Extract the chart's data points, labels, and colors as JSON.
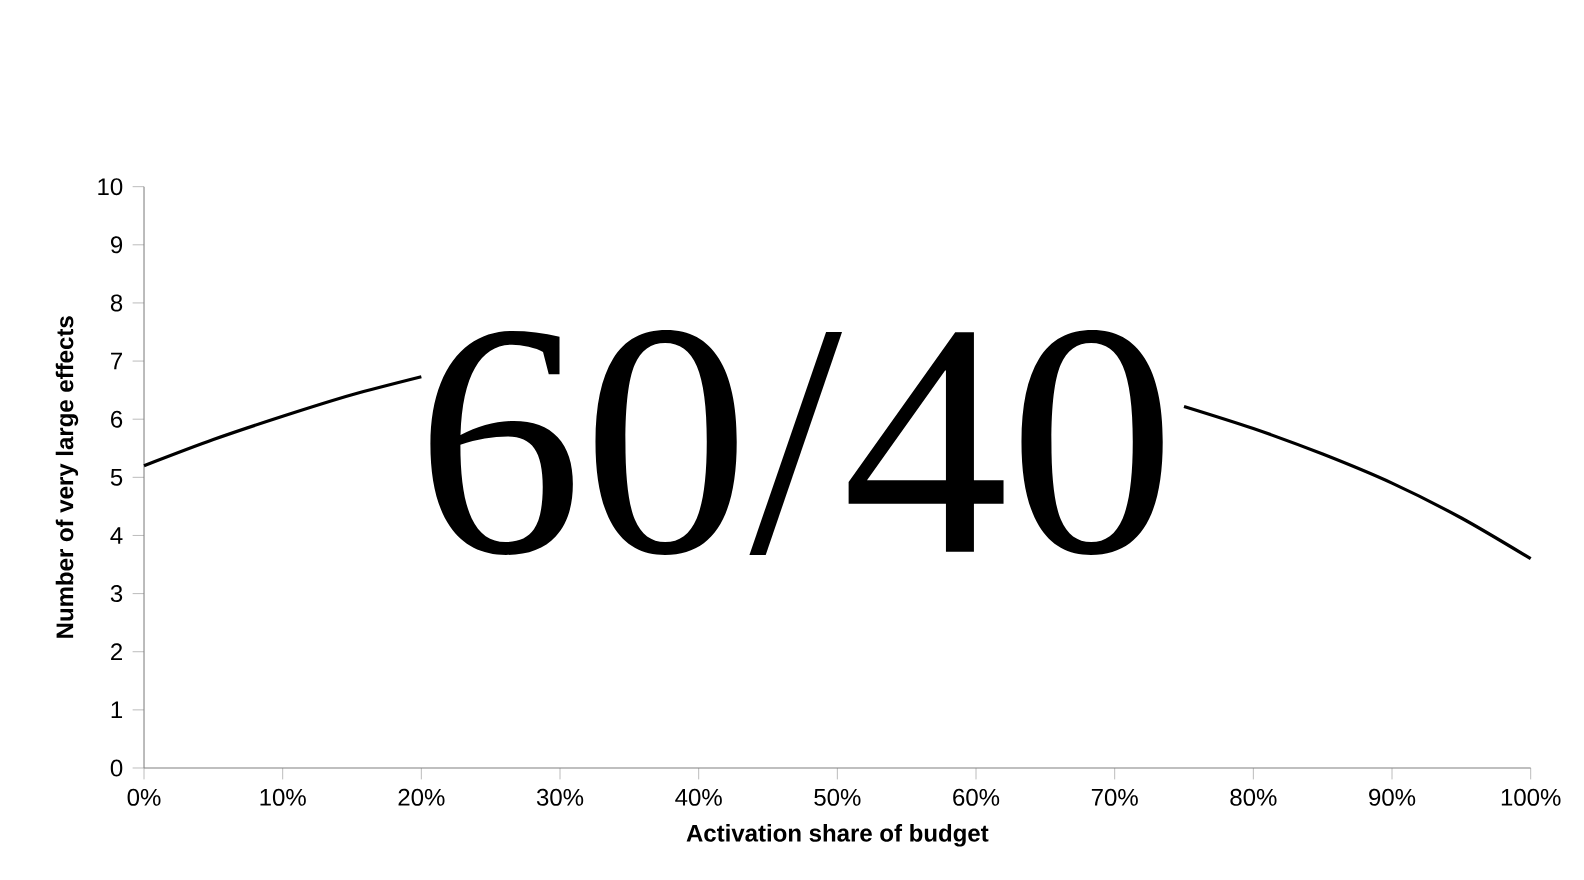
{
  "chart_data": {
    "type": "line",
    "xlabel": "Activation share of budget",
    "ylabel": "Number of very large effects",
    "x": [
      0,
      5,
      10,
      15,
      20,
      25,
      30,
      35,
      40,
      45,
      50,
      55,
      60,
      65,
      70,
      75,
      80,
      85,
      90,
      95,
      100
    ],
    "values": [
      5.2,
      5.65,
      6.05,
      6.42,
      6.73,
      null,
      null,
      null,
      null,
      null,
      null,
      null,
      null,
      null,
      null,
      6.22,
      5.84,
      5.4,
      4.9,
      4.3,
      3.6
    ],
    "color": "#000000",
    "xlim": [
      0,
      100
    ],
    "ylim": [
      0,
      10
    ],
    "xticks": [
      {
        "value": 0,
        "label": "0%"
      },
      {
        "value": 10,
        "label": "10%"
      },
      {
        "value": 20,
        "label": "20%"
      },
      {
        "value": 30,
        "label": "30%"
      },
      {
        "value": 40,
        "label": "40%"
      },
      {
        "value": 50,
        "label": "50%"
      },
      {
        "value": 60,
        "label": "60%"
      },
      {
        "value": 70,
        "label": "70%"
      },
      {
        "value": 80,
        "label": "80%"
      },
      {
        "value": 90,
        "label": "90%"
      },
      {
        "value": 100,
        "label": "100%"
      }
    ],
    "yticks": [
      0,
      1,
      2,
      3,
      4,
      5,
      6,
      7,
      8,
      9,
      10
    ],
    "annotations": [
      "60/40"
    ],
    "grid": false,
    "marker": "none",
    "line_style": "solid"
  }
}
